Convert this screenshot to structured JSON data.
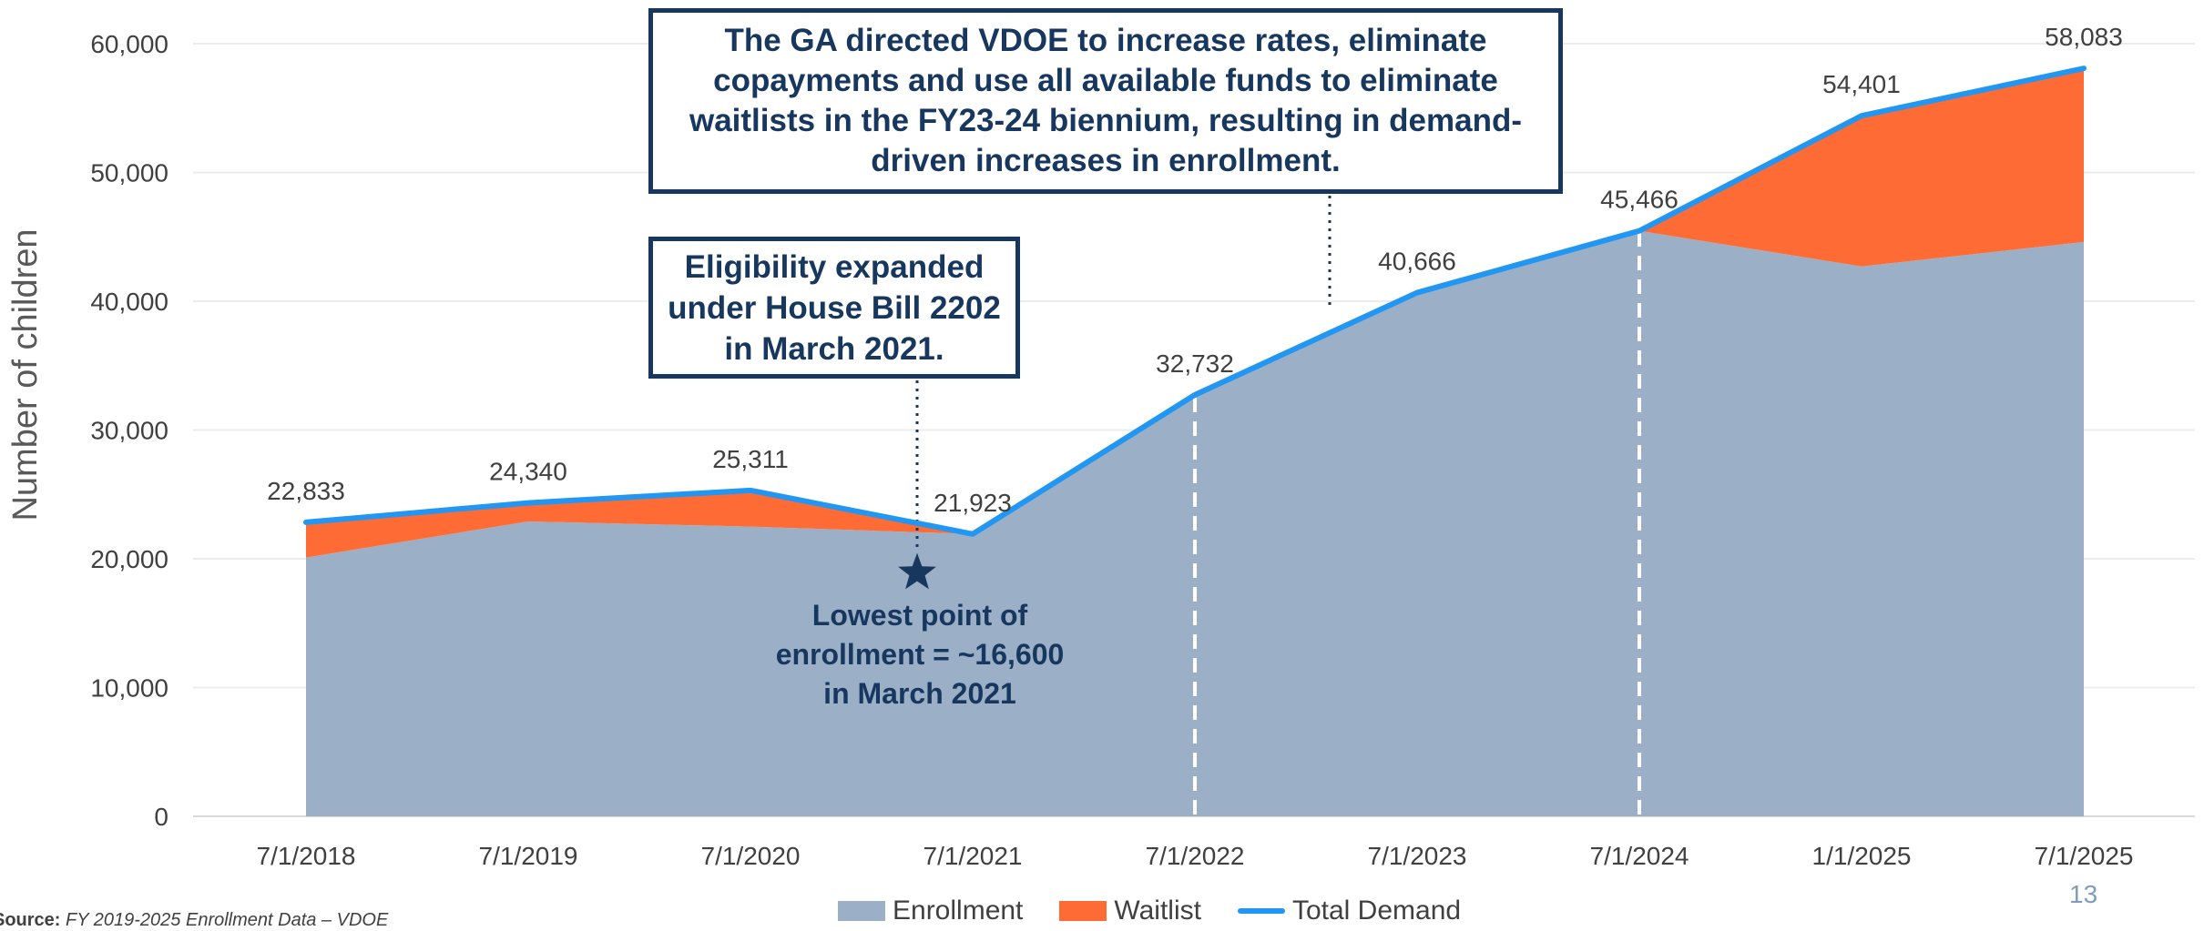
{
  "chart_data": {
    "type": "area",
    "categories": [
      "7/1/2018",
      "7/1/2019",
      "7/1/2020",
      "7/1/2021",
      "7/1/2022",
      "7/1/2023",
      "7/1/2024",
      "1/1/2025",
      "7/1/2025"
    ],
    "series": [
      {
        "name": "Enrollment",
        "values": [
          20100,
          22900,
          22500,
          21923,
          32732,
          40666,
          45466,
          42700,
          44600
        ],
        "color": "#9bb0c7"
      },
      {
        "name": "Waitlist",
        "values": [
          2733,
          1440,
          2811,
          0,
          0,
          0,
          0,
          11701,
          13483
        ],
        "color": "#ff6b35"
      },
      {
        "name": "Total Demand",
        "values": [
          22833,
          24340,
          25311,
          21923,
          32732,
          40666,
          45466,
          54401,
          58083
        ],
        "color": "#2196f3"
      }
    ],
    "data_labels": [
      "22,833",
      "24,340",
      "25,311",
      "21,923",
      "32,732",
      "40,666",
      "45,466",
      "54,401",
      "58,083"
    ],
    "y_ticks": [
      "0",
      "10,000",
      "20,000",
      "30,000",
      "40,000",
      "50,000",
      "60,000"
    ],
    "ylabel": "Number of children",
    "ylim": [
      0,
      60000
    ],
    "grid": true,
    "legend_position": "bottom",
    "star_marker": {
      "x": 2.75,
      "y": 18900
    },
    "dashed_markers_at": [
      4,
      6
    ]
  },
  "annotations": {
    "ga_callout": "The GA directed VDOE to increase rates, eliminate copayments and use all available funds to eliminate waitlists in the FY23-24 biennium, resulting in demand-driven increases in enrollment.",
    "eligibility_callout": "Eligibility expanded under House Bill 2202 in March 2021.",
    "lowest_point": "Lowest point of\nenrollment = ~16,600\nin March 2021"
  },
  "footer": {
    "source_label": "Source:",
    "source_text": " FY 2019-2025 Enrollment Data – VDOE",
    "page_number": "13"
  },
  "legend": {
    "enrollment": "Enrollment",
    "waitlist": "Waitlist",
    "total_demand": "Total Demand"
  },
  "colors": {
    "enrollment": "#9bb0c7",
    "waitlist": "#ff6b35",
    "total_demand": "#2196f3",
    "callout_navy": "#17375e"
  }
}
